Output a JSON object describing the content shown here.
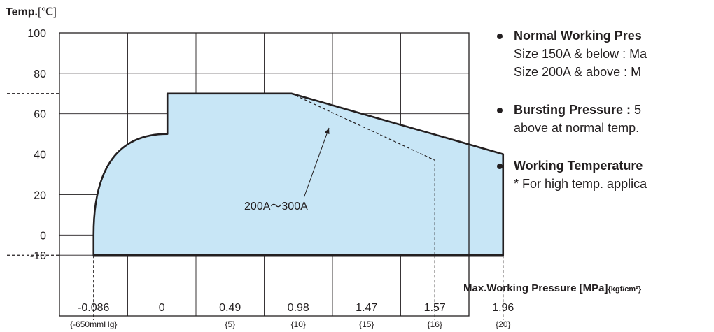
{
  "chart_data": {
    "type": "area",
    "ylabel_main": "Temp.",
    "ylabel_unit": "[℃]",
    "xlabel_main": "Max.Working Pressure [MPa]",
    "xlabel_unit": "{kgf/cm²}",
    "x_positions": [
      -0.086,
      0,
      0.49,
      0.98,
      1.47,
      1.57,
      1.96
    ],
    "x_ticks": [
      {
        "value": -0.086,
        "label": "-0.086",
        "sub": "{-650mmHg}"
      },
      {
        "value": 0,
        "label": "0",
        "sub": ""
      },
      {
        "value": 0.49,
        "label": "0.49",
        "sub": "{5}"
      },
      {
        "value": 0.98,
        "label": "0.98",
        "sub": "{10}"
      },
      {
        "value": 1.47,
        "label": "1.47",
        "sub": "{15}"
      },
      {
        "value": 1.57,
        "label": "1.57",
        "sub": "{16}"
      },
      {
        "value": 1.96,
        "label": "1.96",
        "sub": "{20}"
      }
    ],
    "y_ticks": [
      100,
      80,
      60,
      40,
      20,
      0,
      -10
    ],
    "ylim": [
      -40,
      100
    ],
    "grid": true,
    "region": {
      "points": [
        [
          -0.086,
          -10
        ],
        [
          -0.086,
          0
        ],
        [
          0.04,
          50
        ],
        [
          0.04,
          70
        ],
        [
          0.93,
          70
        ],
        [
          1.96,
          40
        ],
        [
          1.96,
          -10
        ]
      ],
      "fill": "#c8e6f6",
      "stroke": "#231f20"
    },
    "series_200_300": {
      "points": [
        [
          0.93,
          70
        ],
        [
          1.57,
          37
        ],
        [
          1.57,
          -10
        ]
      ],
      "label": "200A～300A"
    },
    "ref_levels": [
      70,
      -10
    ]
  },
  "notes": [
    {
      "head": "Normal Working Pres",
      "lines": [
        "Size 150A & below : Ma",
        "Size 200A & above : M"
      ]
    },
    {
      "head": "Bursting Pressure :",
      "tail": " 5",
      "lines": [
        "above at normal temp."
      ]
    },
    {
      "head": "Working Temperature",
      "lines": [
        "* For high temp. applica"
      ]
    }
  ]
}
